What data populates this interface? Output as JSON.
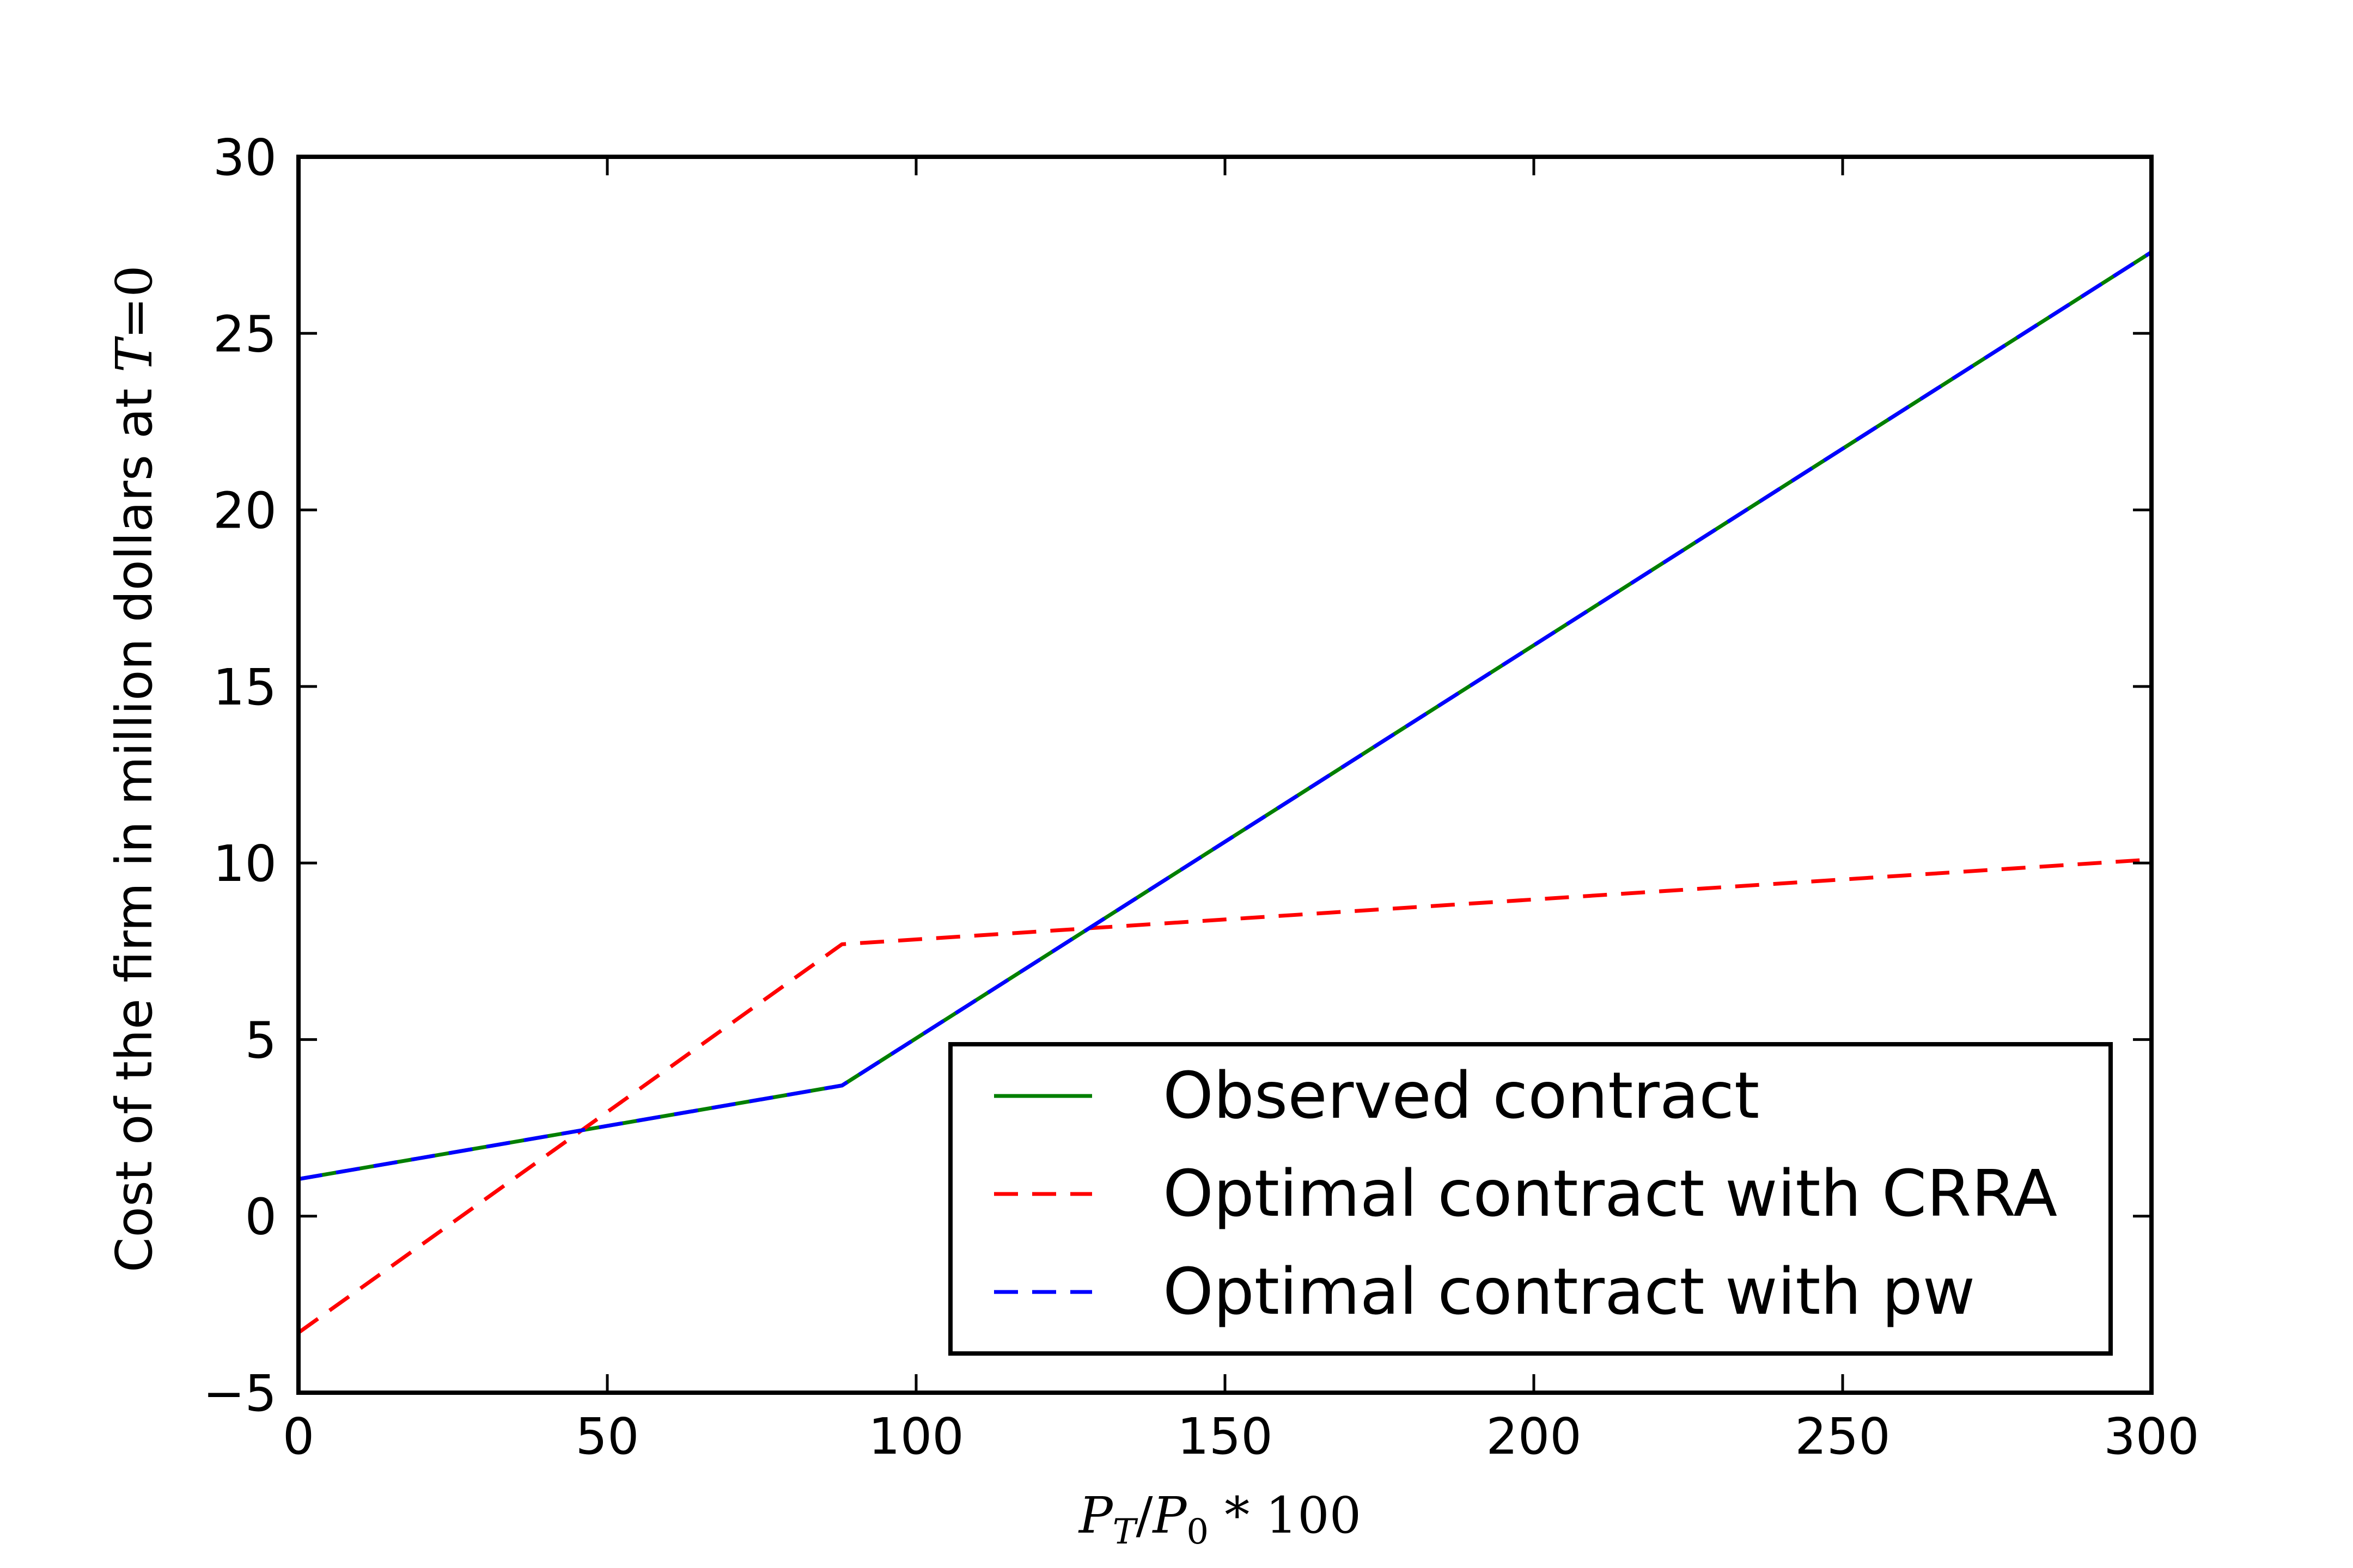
{
  "chart_data": {
    "type": "line",
    "title": "",
    "xlabel": "P_T/P_0 * 100",
    "xlabel_parts": {
      "p1": "P",
      "sub1": "T",
      "slash": "/",
      "p2": "P",
      "sub2": "0",
      "rest": " * 100"
    },
    "ylabel": "Cost of the firm in million dollars at T = 0",
    "ylabel_parts": {
      "text": "Cost of the firm in million dollars at ",
      "var": "T",
      "eq": "=0"
    },
    "xlim": [
      0,
      300
    ],
    "ylim": [
      -5,
      30
    ],
    "xticks": [
      0,
      50,
      100,
      150,
      200,
      250,
      300
    ],
    "yticks": [
      -5,
      0,
      5,
      10,
      15,
      20,
      25,
      30
    ],
    "xtick_labels": [
      "0",
      "50",
      "100",
      "150",
      "200",
      "250",
      "300"
    ],
    "ytick_labels": [
      "−5",
      "0",
      "5",
      "10",
      "15",
      "20",
      "25",
      "30"
    ],
    "grid": false,
    "legend_position": "lower-right",
    "series": [
      {
        "name": "Observed contract",
        "color": "#007f00",
        "style": "solid",
        "x": [
          0,
          88,
          300
        ],
        "y": [
          1.05,
          3.7,
          27.3
        ]
      },
      {
        "name": "Optimal contract with CRRA",
        "color": "#ff0000",
        "style": "dashed",
        "x": [
          0,
          88,
          300
        ],
        "y": [
          -3.3,
          7.7,
          10.1
        ]
      },
      {
        "name": "Optimal contract with pw",
        "color": "#0000ff",
        "style": "dashed",
        "x": [
          0,
          88,
          300
        ],
        "y": [
          1.05,
          3.7,
          27.3
        ]
      }
    ]
  }
}
